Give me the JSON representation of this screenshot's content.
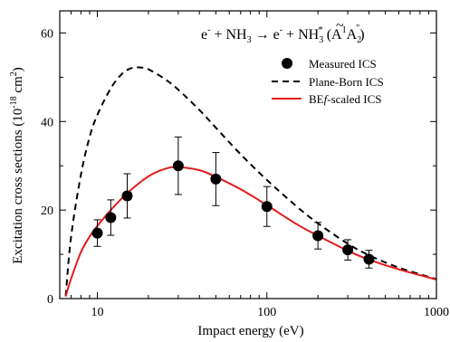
{
  "chart_data": {
    "type": "line",
    "xscale": "log",
    "xlabel": "Impact energy (eV)",
    "ylabel": "Excitation cross sections (10",
    "ylabel_sup": "-18",
    "ylabel_end": " cm",
    "ylabel_sup2": "2",
    "ylabel_close": ")",
    "xlim": [
      6,
      1000
    ],
    "ylim": [
      0,
      65
    ],
    "x_ticks": [
      10,
      100,
      1000
    ],
    "x_tick_labels": [
      "10",
      "100",
      "1000"
    ],
    "y_ticks": [
      0,
      20,
      40,
      60
    ],
    "y_tick_labels": [
      "0",
      "20",
      "40",
      "60"
    ],
    "grid": false,
    "legend_position": "top-right",
    "title": {
      "e_left": "e",
      "minus": "-",
      "plus_nh": " + NH",
      "sub3": "3",
      "arrow": " → ",
      "e_right": "e",
      "minus2": "-",
      "plus_nh2": " + NH",
      "sub3b": "3",
      "star": "*",
      "paren_open": " (",
      "a_tilde": "A",
      "tilde": "~",
      "sup1": "1",
      "a2": "A",
      "sub2": "2",
      "dprime": "\"",
      "paren_close": ")"
    },
    "series": [
      {
        "name": "Measured ICS",
        "style": "markers",
        "color": "#000000",
        "x": [
          10,
          12,
          15,
          30,
          50,
          100,
          200,
          300,
          400
        ],
        "y": [
          14.8,
          18.3,
          23.2,
          30.0,
          27.0,
          20.8,
          14.2,
          11.0,
          8.9
        ],
        "err": [
          3.0,
          4.0,
          5.0,
          6.5,
          6.0,
          4.5,
          3.0,
          2.3,
          2.0
        ]
      },
      {
        "name": "Plane-Born ICS",
        "style": "dashed",
        "color": "#000000",
        "x": [
          6.5,
          7,
          8,
          9,
          10,
          12,
          14,
          16,
          18,
          20,
          25,
          30,
          40,
          50,
          70,
          100,
          150,
          200,
          300,
          400,
          600,
          1000
        ],
        "y": [
          0.5,
          14,
          28,
          36.5,
          41.5,
          47.5,
          50.8,
          52.1,
          52.2,
          51.8,
          49.6,
          47.2,
          42.6,
          38.6,
          32.6,
          26.8,
          20.8,
          17.0,
          12.4,
          9.8,
          7.0,
          4.4
        ]
      },
      {
        "name": "BEf-scaled ICS",
        "legend_parts": [
          "BE",
          "f",
          "-scaled ICS"
        ],
        "style": "solid",
        "color": "#e41a1c",
        "x": [
          6.5,
          7,
          8,
          9,
          10,
          12,
          15,
          20,
          25,
          30,
          40,
          50,
          70,
          100,
          150,
          200,
          300,
          400,
          600,
          1000
        ],
        "y": [
          0.5,
          4.5,
          10.5,
          14.0,
          16.4,
          20.0,
          23.8,
          27.6,
          29.3,
          29.7,
          29.0,
          27.5,
          24.7,
          21.1,
          16.8,
          14.2,
          10.8,
          8.8,
          6.6,
          4.3
        ]
      }
    ]
  }
}
